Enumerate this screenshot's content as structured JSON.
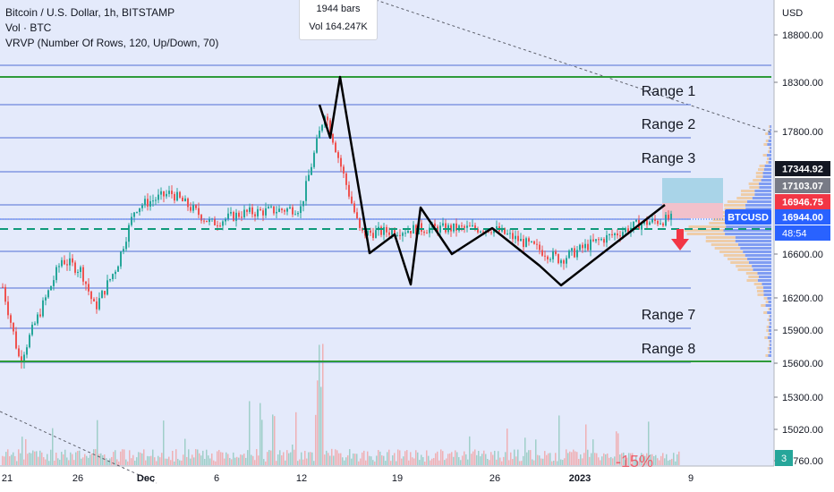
{
  "header": {
    "symbol_line": "Bitcoin / U.S. Dollar, 1h, BITSTAMP",
    "volume_line": "Vol · BTC",
    "vrvp_line": "VRVP (Number Of Rows, 120, Up/Down, 70)"
  },
  "tooltip": {
    "bars": "1944 bars",
    "volume": "Vol 164.247K"
  },
  "axis": {
    "currency": "USD",
    "y_ticks": [
      "18800.00",
      "18300.00",
      "17800.00",
      "17344.92",
      "17103.07",
      "16946.75",
      "16944.00",
      "16600.00",
      "16200.00",
      "15900.00",
      "15600.00",
      "15300.00",
      "15020.00",
      "14760.00"
    ],
    "x_ticks": [
      "21",
      "26",
      "Dec",
      "6",
      "12",
      "19",
      "26",
      "2023",
      "9"
    ]
  },
  "price_tags": [
    {
      "label": "17344.92",
      "color": "#131722"
    },
    {
      "label": "17103.07",
      "color": "#787b86"
    },
    {
      "label": "16946.75",
      "color": "#f23645"
    },
    {
      "label": "16944.00",
      "color": "#2962ff"
    }
  ],
  "symbol_badge": {
    "label": "BTCUSD",
    "time": "48:54",
    "color": "#2962ff"
  },
  "corner_badge": "3",
  "watermark": "-15%",
  "chart_data": {
    "type": "candlestick",
    "title": "Bitcoin / U.S. Dollar, 1h, BITSTAMP",
    "ylabel": "USD",
    "ylim": [
      14700,
      18950
    ],
    "y_scale": "log",
    "x_ticks": [
      "21",
      "26",
      "Dec",
      "6",
      "12",
      "19",
      "26",
      "2023",
      "9"
    ],
    "price_path": [
      [
        "21",
        16300
      ],
      [
        "22",
        15620
      ],
      [
        "24",
        16550
      ],
      [
        "26",
        16450
      ],
      [
        "27",
        16100
      ],
      [
        "29",
        16500
      ],
      [
        "30",
        17050
      ],
      [
        "Dec 2",
        17100
      ],
      [
        "Dec 4",
        17200
      ],
      [
        "Dec 5",
        16900
      ],
      [
        "Dec 8",
        17000
      ],
      [
        "Dec 12",
        17050
      ],
      [
        "Dec 14",
        18000
      ],
      [
        "Dec 15",
        17700
      ],
      [
        "Dec 17",
        16800
      ],
      [
        "Dec 21",
        16850
      ],
      [
        "Dec 26",
        16850
      ],
      [
        "Dec 30",
        16550
      ],
      [
        "Jan 2",
        16700
      ],
      [
        "Jan 5",
        16900
      ],
      [
        "Jan 7",
        16945
      ]
    ],
    "range_lines": [
      {
        "label": "Range 1",
        "value": 17980
      },
      {
        "label": "Range 2",
        "value": 17700
      },
      {
        "label": "Range 3",
        "value": 17344.92
      },
      {
        "label": "",
        "value": 17103.07
      },
      {
        "label": "",
        "value": 16820
      },
      {
        "label": "",
        "value": 16600
      },
      {
        "label": "",
        "value": 16280
      },
      {
        "label": "Range 7",
        "value": 15960
      },
      {
        "label": "Range 8",
        "value": 15620
      }
    ],
    "support_resistance": [
      {
        "value": 18330,
        "color": "#2e9b3a"
      },
      {
        "value": 15620,
        "color": "#2e9b3a"
      },
      {
        "value": 16870,
        "color": "#109a7a",
        "style": "dashed"
      }
    ],
    "pattern_path": [
      [
        "Dec 13",
        18050
      ],
      [
        "Dec 14",
        17850
      ],
      [
        "Dec 15",
        18350
      ],
      [
        "Dec 19",
        16600
      ],
      [
        "Dec 20",
        16850
      ],
      [
        "Dec 21",
        16600
      ],
      [
        "Dec 22",
        16280
      ],
      [
        "Dec 23",
        17050
      ],
      [
        "Dec 25",
        16600
      ],
      [
        "Dec 28",
        16850
      ],
      [
        "Dec 30",
        16650
      ],
      [
        "Jan 2",
        16280
      ],
      [
        "Jan 6",
        17050
      ]
    ],
    "volume_profile": "up/down",
    "grid": true,
    "legend": "none"
  }
}
